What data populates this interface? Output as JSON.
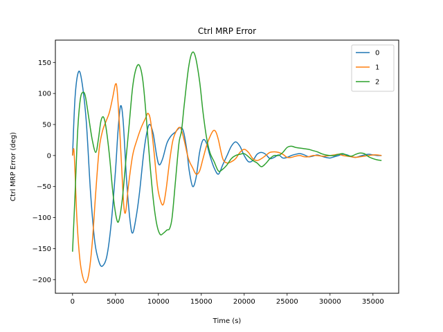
{
  "chart_data": {
    "type": "line",
    "title": "Ctrl MRP Error",
    "xlabel": "Time (s)",
    "ylabel": "Ctrl MRP Error (deg)",
    "xlim": [
      -2000,
      38000
    ],
    "ylim": [
      -222,
      186
    ],
    "xticks": [
      0,
      5000,
      10000,
      15000,
      20000,
      25000,
      30000,
      35000
    ],
    "xtick_labels": [
      "0",
      "5000",
      "10000",
      "15000",
      "20000",
      "25000",
      "30000",
      "35000"
    ],
    "yticks": [
      -200,
      -150,
      -100,
      -50,
      0,
      50,
      100,
      150
    ],
    "ytick_labels": [
      "−200",
      "−150",
      "−100",
      "−50",
      "0",
      "50",
      "100",
      "150"
    ],
    "grid": false,
    "legend_position": "top-right",
    "series": [
      {
        "name": "0",
        "color": "#1f77b4",
        "points": [
          [
            0,
            0
          ],
          [
            300,
            95
          ],
          [
            700,
            135
          ],
          [
            1100,
            118
          ],
          [
            1600,
            55
          ],
          [
            2100,
            -60
          ],
          [
            2600,
            -140
          ],
          [
            3100,
            -172
          ],
          [
            3500,
            -178
          ],
          [
            4000,
            -162
          ],
          [
            4500,
            -110
          ],
          [
            5000,
            -25
          ],
          [
            5300,
            40
          ],
          [
            5600,
            80
          ],
          [
            5900,
            55
          ],
          [
            6300,
            -40
          ],
          [
            6700,
            -105
          ],
          [
            7000,
            -125
          ],
          [
            7400,
            -100
          ],
          [
            7800,
            -60
          ],
          [
            8300,
            5
          ],
          [
            8700,
            40
          ],
          [
            9000,
            50
          ],
          [
            9400,
            35
          ],
          [
            9800,
            0
          ],
          [
            10100,
            -15
          ],
          [
            10500,
            -5
          ],
          [
            11000,
            20
          ],
          [
            11500,
            32
          ],
          [
            12000,
            38
          ],
          [
            12500,
            45
          ],
          [
            12900,
            40
          ],
          [
            13300,
            10
          ],
          [
            13600,
            -25
          ],
          [
            14000,
            -50
          ],
          [
            14400,
            -35
          ],
          [
            14800,
            5
          ],
          [
            15200,
            25
          ],
          [
            15600,
            20
          ],
          [
            16000,
            0
          ],
          [
            16500,
            -20
          ],
          [
            17000,
            -30
          ],
          [
            17500,
            -15
          ],
          [
            18000,
            0
          ],
          [
            18500,
            15
          ],
          [
            19000,
            22
          ],
          [
            19500,
            15
          ],
          [
            20000,
            0
          ],
          [
            20500,
            -10
          ],
          [
            21000,
            -8
          ],
          [
            21500,
            2
          ],
          [
            22000,
            5
          ],
          [
            22500,
            2
          ],
          [
            23000,
            -5
          ],
          [
            23500,
            -3
          ],
          [
            24000,
            1
          ],
          [
            24500,
            -4
          ],
          [
            25000,
            -3
          ],
          [
            25500,
            0
          ],
          [
            26000,
            2
          ],
          [
            26500,
            3
          ],
          [
            27000,
            1
          ],
          [
            27500,
            -2
          ],
          [
            28000,
            -1
          ],
          [
            28500,
            1
          ],
          [
            29000,
            -1
          ],
          [
            29500,
            -3
          ],
          [
            30000,
            -4
          ],
          [
            30500,
            -2
          ],
          [
            31000,
            0
          ],
          [
            31500,
            2
          ],
          [
            32000,
            1
          ],
          [
            32500,
            -2
          ],
          [
            33000,
            -3
          ],
          [
            33500,
            -1
          ],
          [
            34000,
            1
          ],
          [
            34500,
            2
          ],
          [
            35000,
            1
          ],
          [
            35500,
            0
          ],
          [
            36000,
            0
          ]
        ]
      },
      {
        "name": "1",
        "color": "#ff7f0e",
        "points": [
          [
            0,
            0
          ],
          [
            150,
            10
          ],
          [
            300,
            -30
          ],
          [
            500,
            -100
          ],
          [
            800,
            -160
          ],
          [
            1100,
            -190
          ],
          [
            1500,
            -205
          ],
          [
            1900,
            -190
          ],
          [
            2300,
            -140
          ],
          [
            2700,
            -60
          ],
          [
            3100,
            10
          ],
          [
            3500,
            40
          ],
          [
            3900,
            55
          ],
          [
            4300,
            70
          ],
          [
            4700,
            95
          ],
          [
            5000,
            115
          ],
          [
            5200,
            105
          ],
          [
            5500,
            40
          ],
          [
            5800,
            -40
          ],
          [
            6000,
            -85
          ],
          [
            6200,
            -90
          ],
          [
            6500,
            -50
          ],
          [
            7000,
            0
          ],
          [
            7500,
            25
          ],
          [
            8000,
            45
          ],
          [
            8500,
            60
          ],
          [
            8800,
            68
          ],
          [
            9100,
            55
          ],
          [
            9500,
            5
          ],
          [
            9900,
            -50
          ],
          [
            10300,
            -75
          ],
          [
            10600,
            -78
          ],
          [
            10900,
            -55
          ],
          [
            11300,
            -10
          ],
          [
            11700,
            25
          ],
          [
            12200,
            42
          ],
          [
            12600,
            44
          ],
          [
            13000,
            25
          ],
          [
            13500,
            -5
          ],
          [
            14000,
            -20
          ],
          [
            14400,
            -30
          ],
          [
            14800,
            -25
          ],
          [
            15200,
            -5
          ],
          [
            15600,
            15
          ],
          [
            16000,
            30
          ],
          [
            16400,
            40
          ],
          [
            16700,
            38
          ],
          [
            17000,
            25
          ],
          [
            17500,
            -5
          ],
          [
            18000,
            -12
          ],
          [
            18500,
            -10
          ],
          [
            19000,
            -5
          ],
          [
            19500,
            5
          ],
          [
            20000,
            10
          ],
          [
            20500,
            5
          ],
          [
            21000,
            -5
          ],
          [
            21500,
            -8
          ],
          [
            22000,
            -5
          ],
          [
            22500,
            0
          ],
          [
            23000,
            5
          ],
          [
            23500,
            6
          ],
          [
            24000,
            5
          ],
          [
            24500,
            2
          ],
          [
            25000,
            -3
          ],
          [
            25500,
            -3
          ],
          [
            26000,
            -1
          ],
          [
            26500,
            0
          ],
          [
            27000,
            -2
          ],
          [
            27500,
            -2
          ],
          [
            28000,
            0
          ],
          [
            28500,
            0
          ],
          [
            29000,
            -1
          ],
          [
            29500,
            -1
          ],
          [
            30000,
            0
          ],
          [
            30500,
            1
          ],
          [
            31000,
            2
          ],
          [
            31500,
            0
          ],
          [
            32000,
            -1
          ],
          [
            32500,
            -2
          ],
          [
            33000,
            -3
          ],
          [
            33500,
            -2
          ],
          [
            34000,
            -1
          ],
          [
            34500,
            0
          ],
          [
            35000,
            1
          ],
          [
            35500,
            1
          ],
          [
            36000,
            0
          ]
        ]
      },
      {
        "name": "2",
        "color": "#2ca02c",
        "points": [
          [
            0,
            -155
          ],
          [
            300,
            -60
          ],
          [
            600,
            40
          ],
          [
            900,
            90
          ],
          [
            1200,
            102
          ],
          [
            1500,
            95
          ],
          [
            1900,
            60
          ],
          [
            2300,
            25
          ],
          [
            2700,
            5
          ],
          [
            3000,
            25
          ],
          [
            3300,
            55
          ],
          [
            3600,
            62
          ],
          [
            3900,
            45
          ],
          [
            4300,
            0
          ],
          [
            4700,
            -60
          ],
          [
            5100,
            -100
          ],
          [
            5400,
            -105
          ],
          [
            5800,
            -70
          ],
          [
            6200,
            -10
          ],
          [
            6600,
            50
          ],
          [
            7000,
            110
          ],
          [
            7400,
            140
          ],
          [
            7800,
            145
          ],
          [
            8200,
            120
          ],
          [
            8600,
            60
          ],
          [
            9000,
            -10
          ],
          [
            9400,
            -70
          ],
          [
            9800,
            -110
          ],
          [
            10200,
            -127
          ],
          [
            10600,
            -125
          ],
          [
            11000,
            -120
          ],
          [
            11300,
            -118
          ],
          [
            11600,
            -100
          ],
          [
            12000,
            -40
          ],
          [
            12400,
            20
          ],
          [
            12700,
            40
          ],
          [
            13000,
            80
          ],
          [
            13500,
            140
          ],
          [
            13900,
            165
          ],
          [
            14300,
            160
          ],
          [
            14800,
            120
          ],
          [
            15200,
            70
          ],
          [
            15600,
            30
          ],
          [
            16000,
            5
          ],
          [
            16500,
            -10
          ],
          [
            17000,
            -25
          ],
          [
            17500,
            -22
          ],
          [
            18000,
            -15
          ],
          [
            18500,
            -5
          ],
          [
            19000,
            0
          ],
          [
            19500,
            2
          ],
          [
            20000,
            3
          ],
          [
            20500,
            -2
          ],
          [
            21000,
            -8
          ],
          [
            21500,
            -12
          ],
          [
            22000,
            -18
          ],
          [
            22500,
            -13
          ],
          [
            23000,
            -5
          ],
          [
            23500,
            0
          ],
          [
            24000,
            0
          ],
          [
            24500,
            5
          ],
          [
            25000,
            13
          ],
          [
            25500,
            15
          ],
          [
            26000,
            13
          ],
          [
            26500,
            12
          ],
          [
            27000,
            11
          ],
          [
            27500,
            10
          ],
          [
            28000,
            8
          ],
          [
            28500,
            6
          ],
          [
            29000,
            3
          ],
          [
            29500,
            1
          ],
          [
            30000,
            0
          ],
          [
            30500,
            0
          ],
          [
            31000,
            2
          ],
          [
            31500,
            3
          ],
          [
            32000,
            0
          ],
          [
            32500,
            -1
          ],
          [
            33000,
            2
          ],
          [
            33500,
            4
          ],
          [
            34000,
            3
          ],
          [
            34500,
            -2
          ],
          [
            35000,
            -5
          ],
          [
            35500,
            -7
          ],
          [
            36000,
            -8
          ]
        ]
      }
    ]
  }
}
